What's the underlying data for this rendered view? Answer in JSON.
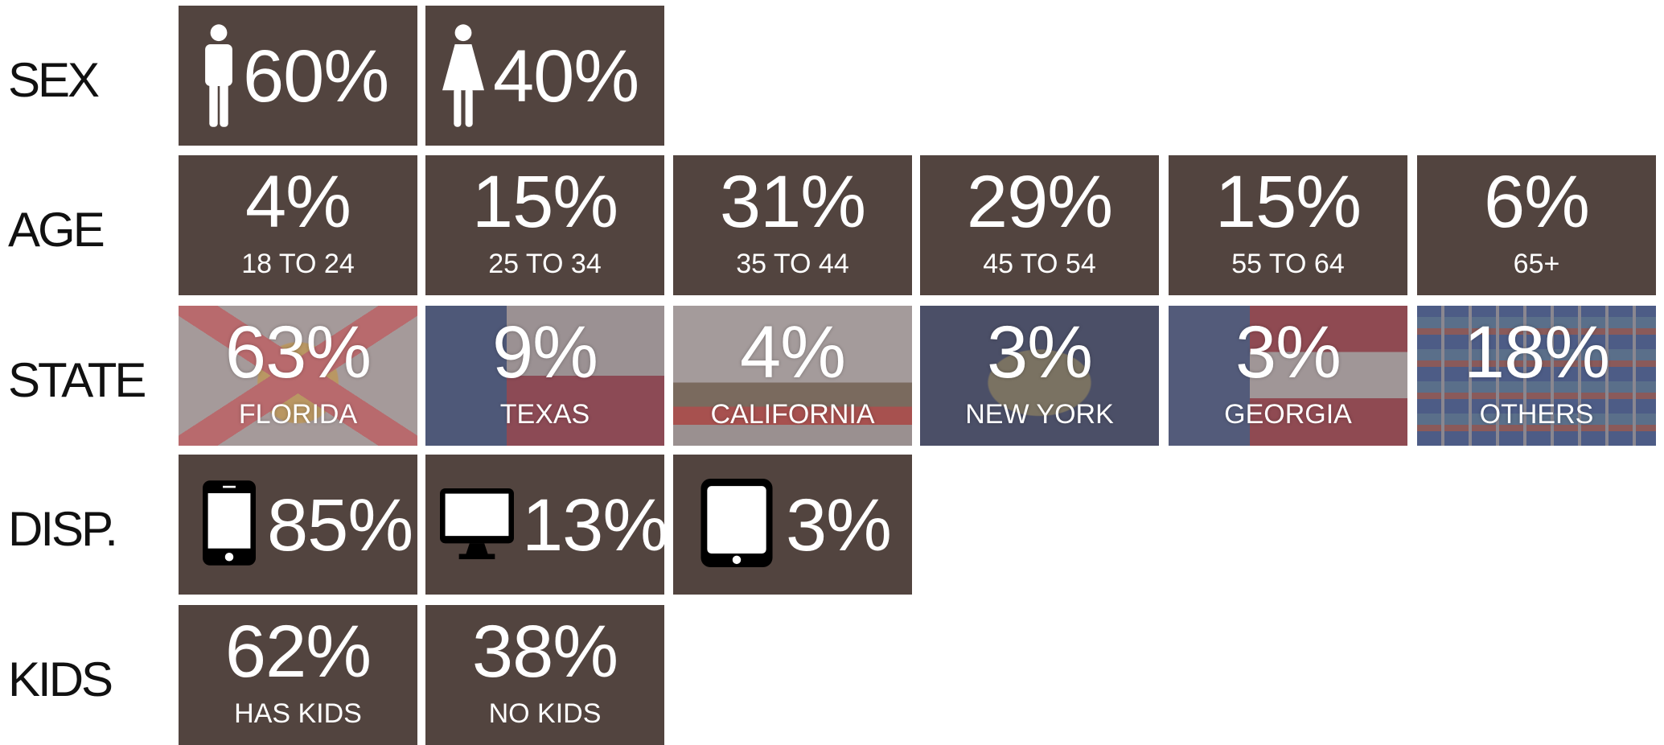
{
  "rows": [
    {
      "label": "SEX",
      "tiles": [
        {
          "value": "60%"
        },
        {
          "value": "40%"
        }
      ]
    },
    {
      "label": "AGE",
      "tiles": [
        {
          "value": "4%",
          "caption": "18 TO 24"
        },
        {
          "value": "15%",
          "caption": "25 TO 34"
        },
        {
          "value": "31%",
          "caption": "35 TO 44"
        },
        {
          "value": "29%",
          "caption": "45 TO 54"
        },
        {
          "value": "15%",
          "caption": "55 TO 64"
        },
        {
          "value": "6%",
          "caption": "65+"
        }
      ]
    },
    {
      "label": "STATE",
      "tiles": [
        {
          "value": "63%",
          "caption": "FLORIDA"
        },
        {
          "value": "9%",
          "caption": "TEXAS"
        },
        {
          "value": "4%",
          "caption": "CALIFORNIA"
        },
        {
          "value": "3%",
          "caption": "NEW YORK"
        },
        {
          "value": "3%",
          "caption": "GEORGIA"
        },
        {
          "value": "18%",
          "caption": "OTHERS"
        }
      ]
    },
    {
      "label": "DISP.",
      "tiles": [
        {
          "value": "85%"
        },
        {
          "value": "13%"
        },
        {
          "value": "3%"
        }
      ]
    },
    {
      "label": "KIDS",
      "tiles": [
        {
          "value": "62%",
          "caption": "HAS KIDS"
        },
        {
          "value": "38%",
          "caption": "NO KIDS"
        }
      ]
    }
  ]
}
